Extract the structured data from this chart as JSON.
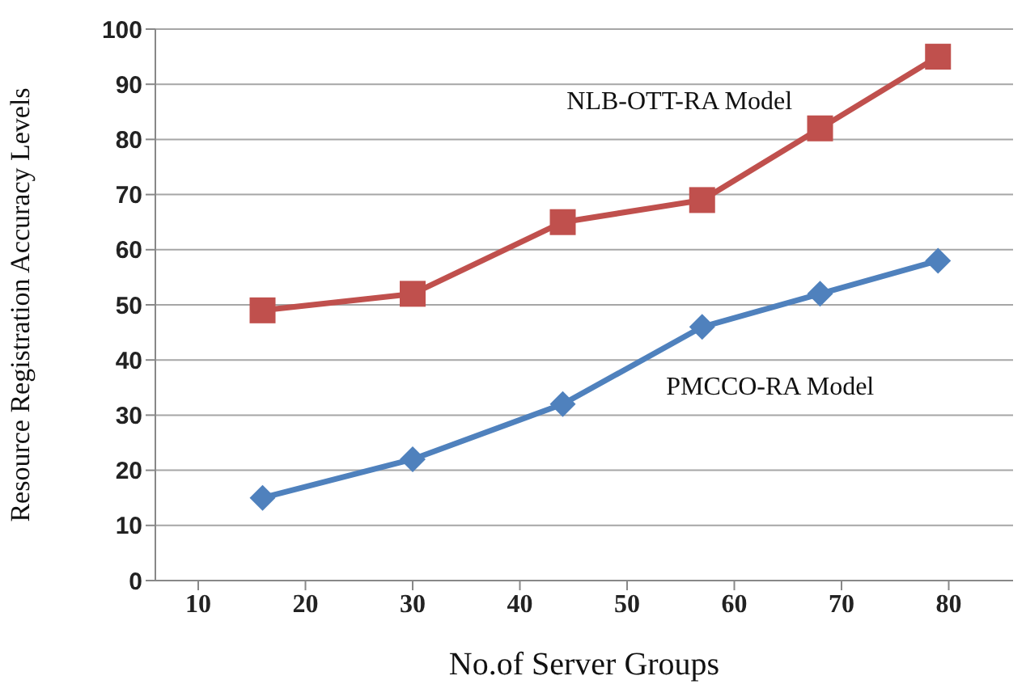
{
  "chart_data": {
    "type": "line",
    "xlabel": "No.of Server Groups",
    "ylabel": "Resource Registration Accuracy Levels",
    "x": [
      16,
      30,
      44,
      57,
      68,
      79
    ],
    "series": [
      {
        "name": "NLB-OTT-RA Model",
        "color": "#c0504d",
        "marker": "square",
        "values": [
          49,
          52,
          65,
          69,
          82,
          95
        ]
      },
      {
        "name": "PMCCO-RA Model",
        "color": "#4f81bd",
        "marker": "diamond",
        "values": [
          15,
          22,
          32,
          46,
          52,
          58
        ]
      }
    ],
    "xlim": [
      6,
      86
    ],
    "xticks": [
      10,
      20,
      30,
      40,
      50,
      60,
      70,
      80
    ],
    "ylim": [
      0,
      100
    ],
    "yticks": [
      0,
      10,
      20,
      30,
      40,
      50,
      60,
      70,
      80,
      90,
      100
    ],
    "grid": "y",
    "line_style": "solid"
  }
}
